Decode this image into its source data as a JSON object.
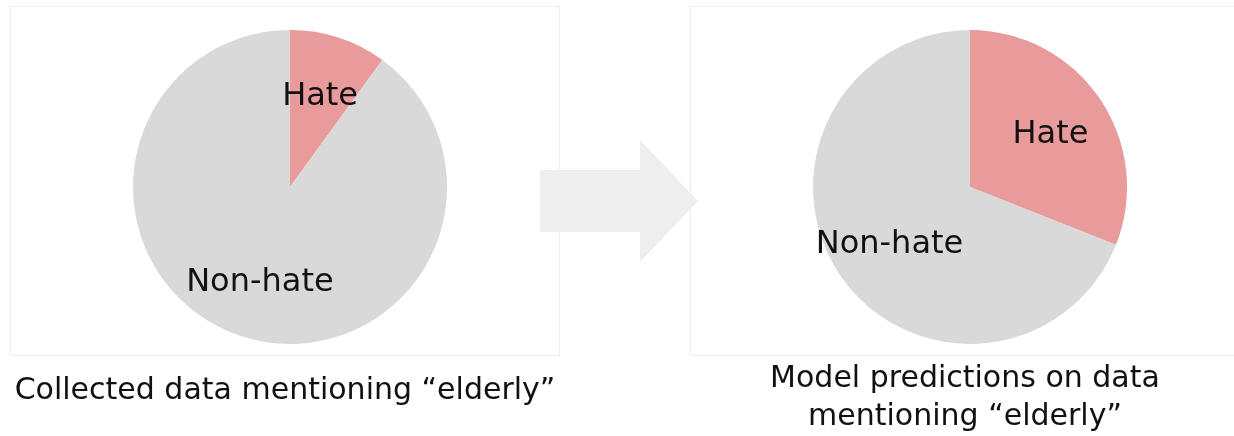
{
  "chart_data": [
    {
      "type": "pie",
      "title": "Collected data mentioning “elderly”",
      "categories": [
        "Hate",
        "Non-hate"
      ],
      "values": [
        10,
        90
      ],
      "colors": [
        "#e99a9a",
        "#d9d9d9"
      ]
    },
    {
      "type": "pie",
      "title": "Model predictions on data mentioning “elderly”",
      "categories": [
        "Hate",
        "Non-hate"
      ],
      "values": [
        31,
        69
      ],
      "colors": [
        "#e99a9a",
        "#d9d9d9"
      ]
    }
  ]
}
